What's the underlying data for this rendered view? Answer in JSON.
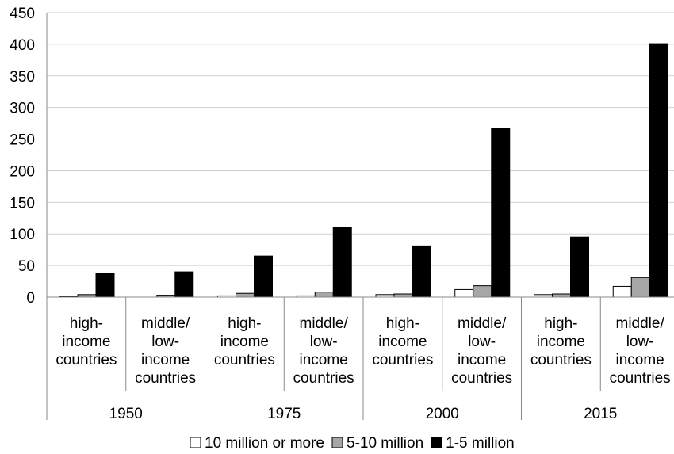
{
  "chart_data": {
    "type": "bar",
    "title": "",
    "xlabel": "",
    "ylabel": "",
    "ylim": [
      0,
      450
    ],
    "yticks": [
      0,
      50,
      100,
      150,
      200,
      250,
      300,
      350,
      400,
      450
    ],
    "grid": true,
    "legend_position": "bottom",
    "groups": [
      "1950",
      "1975",
      "2000",
      "2015"
    ],
    "categories": [
      [
        "high-",
        "income",
        "countries"
      ],
      [
        "middle/",
        "low-",
        "income",
        "countries"
      ],
      [
        "high-",
        "income",
        "countries"
      ],
      [
        "middle/",
        "low-",
        "income",
        "countries"
      ],
      [
        "high-",
        "income",
        "countries"
      ],
      [
        "middle/",
        "low-",
        "income",
        "countries"
      ],
      [
        "high-",
        "income",
        "countries"
      ],
      [
        "middle/",
        "low-",
        "income",
        "countries"
      ]
    ],
    "series": [
      {
        "name": "10 million or more",
        "color": "#ffffff",
        "values": [
          1,
          0,
          2,
          2,
          4,
          12,
          4,
          17
        ]
      },
      {
        "name": "5-10 million",
        "color": "#a6a6a6",
        "values": [
          4,
          3,
          6,
          8,
          5,
          18,
          5,
          31
        ]
      },
      {
        "name": "1-5 million",
        "color": "#000000",
        "values": [
          38,
          40,
          65,
          110,
          81,
          267,
          95,
          401
        ]
      }
    ]
  }
}
